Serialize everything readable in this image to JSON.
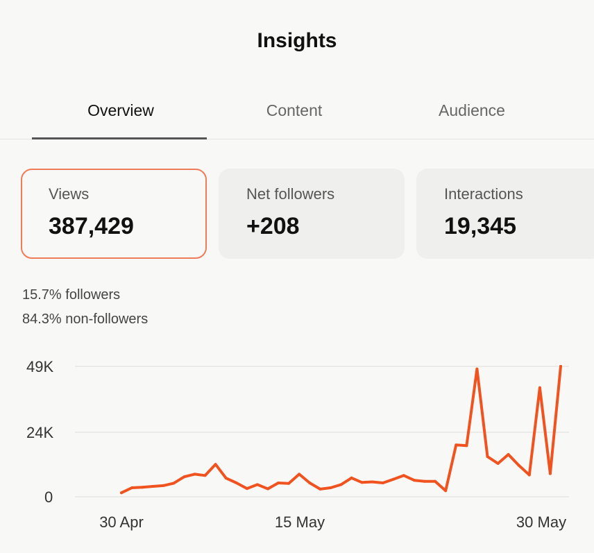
{
  "page": {
    "title": "Insights"
  },
  "tabs": [
    {
      "label": "Overview",
      "active": true
    },
    {
      "label": "Content",
      "active": false
    },
    {
      "label": "Audience",
      "active": false
    }
  ],
  "metrics": [
    {
      "label": "Views",
      "value": "387,429",
      "selected": true
    },
    {
      "label": "Net followers",
      "value": "+208",
      "selected": false
    },
    {
      "label": "Interactions",
      "value": "19,345",
      "selected": false
    }
  ],
  "breakdown": {
    "followers": "15.7% followers",
    "non_followers": "84.3% non-followers"
  },
  "colors": {
    "accent": "#f0531f",
    "selected_border": "#ef7b58"
  },
  "chart_data": {
    "type": "line",
    "y_ticks": [
      "49K",
      "24K",
      "0"
    ],
    "x_ticks": [
      "30 Apr",
      "15 May",
      "30 May"
    ],
    "grid": true,
    "ylim": [
      0,
      49000
    ],
    "series": [
      {
        "color": "#f0531f",
        "values": [
          1500,
          3400,
          3600,
          3900,
          4200,
          5100,
          7500,
          8500,
          8000,
          12200,
          7000,
          5200,
          3100,
          4600,
          3000,
          5200,
          5000,
          8500,
          5200,
          2900,
          3400,
          4600,
          7100,
          5400,
          5600,
          5200,
          6600,
          8000,
          6200,
          5800,
          5800,
          2300,
          19500,
          19200,
          48000,
          15100,
          12500,
          15900,
          11800,
          8200,
          41000,
          8700,
          49000
        ]
      }
    ]
  }
}
